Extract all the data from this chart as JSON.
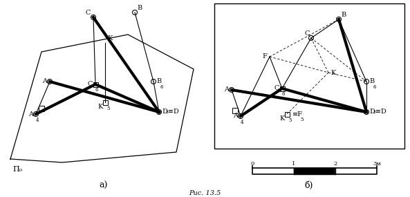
{
  "fig_width": 5.93,
  "fig_height": 2.85,
  "bg_color": "#ffffff",
  "label_a": "а)",
  "label_b": "б)",
  "caption": "Рис. 13.5"
}
